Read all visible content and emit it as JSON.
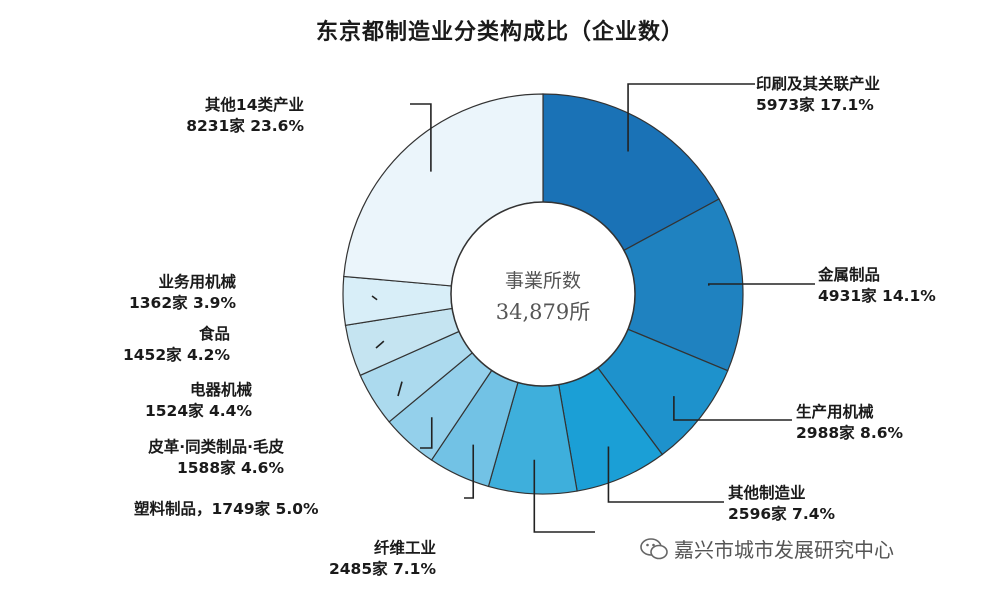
{
  "chart_data": {
    "type": "pie",
    "title": "东京都制造业分类构成比（企业数）",
    "center_label": "事業所数",
    "center_value": "34,879所",
    "slices": [
      {
        "name": "印刷及其关联产业",
        "label": "5973家 17.1%",
        "value": 5973,
        "percent": 17.1,
        "color": "#1a72b6"
      },
      {
        "name": "金属制品",
        "label": "4931家 14.1%",
        "value": 4931,
        "percent": 14.1,
        "color": "#1f82c0"
      },
      {
        "name": "生产用机械",
        "label": "2988家 8.6%",
        "value": 2988,
        "percent": 8.6,
        "color": "#1e92cc"
      },
      {
        "name": "其他制造业",
        "label": "2596家 7.4%",
        "value": 2596,
        "percent": 7.4,
        "color": "#1b9fd6"
      },
      {
        "name": "纤维工业",
        "label": "2485家 7.1%",
        "value": 2485,
        "percent": 7.1,
        "color": "#3eafdc"
      },
      {
        "name": "塑料制品",
        "label": "，1749家 5.0%",
        "value": 1749,
        "percent": 5.0,
        "color": "#72c2e5"
      },
      {
        "name": "皮革·同类制品·毛皮",
        "label": "1588家 4.6%",
        "value": 1588,
        "percent": 4.6,
        "color": "#94d0eb"
      },
      {
        "name": "电器机械",
        "label": "1524家 4.4%",
        "value": 1524,
        "percent": 4.4,
        "color": "#acdaee"
      },
      {
        "name": "食品",
        "label": "1452家 4.2%",
        "value": 1452,
        "percent": 4.2,
        "color": "#c5e4f1"
      },
      {
        "name": "业务用机械",
        "label": "1362家 3.9%",
        "value": 1362,
        "percent": 3.9,
        "color": "#d8eef8"
      },
      {
        "name": "其他14类产业",
        "label": "8231家 23.6%",
        "value": 8231,
        "percent": 23.6,
        "color": "#ebf5fb"
      }
    ]
  },
  "watermark": {
    "text": "嘉兴市城市发展研究中心",
    "icon": "wechat-icon"
  }
}
